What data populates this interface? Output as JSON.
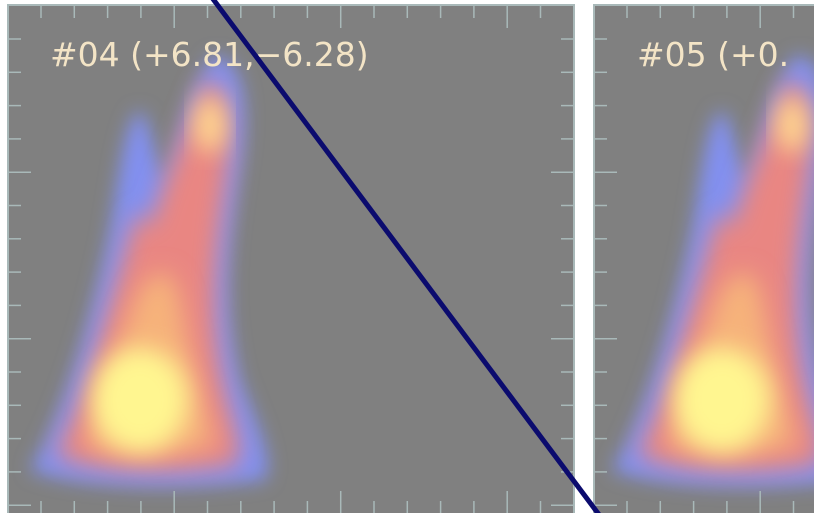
{
  "panels": [
    {
      "label": "#04 (+6.81,−6.28)"
    },
    {
      "label": "#05 (+0."
    }
  ]
}
